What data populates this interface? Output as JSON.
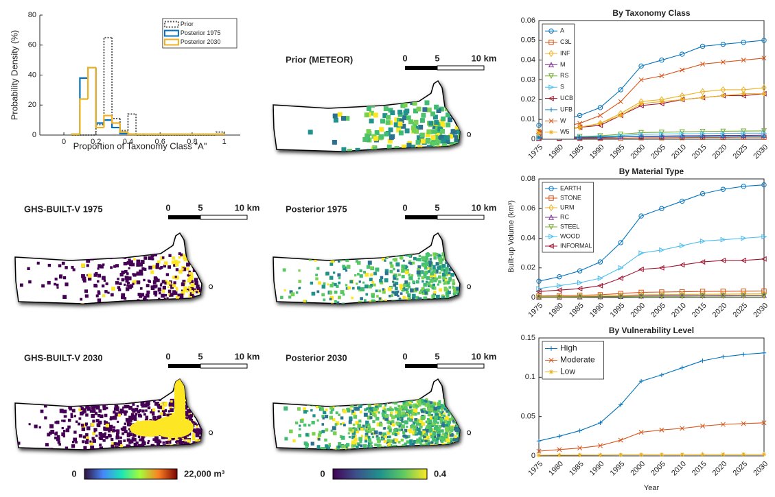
{
  "chart_data": [
    {
      "type": "histogram",
      "xlabel": "Proportion of Taxonomy Class \"A\"",
      "ylabel": "Probability Density (%)",
      "bins": [
        0.05,
        0.1,
        0.15,
        0.2,
        0.25,
        0.3,
        0.35,
        0.4,
        0.45,
        0.5,
        0.55,
        0.6,
        0.65,
        0.7,
        0.75,
        0.8,
        0.85,
        0.9,
        0.95,
        1.0
      ],
      "series": [
        {
          "name": "Prior",
          "color": "#555555",
          "dash": "dotted",
          "values": [
            0,
            0,
            0,
            7,
            65,
            11,
            3,
            14,
            0,
            0,
            0,
            0,
            0,
            0,
            0,
            0,
            0,
            0,
            2
          ]
        },
        {
          "name": "Posterior 1975",
          "color": "#0072BD",
          "dash": "solid",
          "values": [
            0.5,
            38,
            45,
            8,
            10,
            5,
            1,
            0.5,
            0.5,
            0.5,
            0.5,
            0.5,
            0.5,
            0.5,
            0.5,
            0.5,
            0.5,
            0.5,
            0.5
          ]
        },
        {
          "name": "Posterior 2030",
          "color": "#EDB120",
          "dash": "solid",
          "values": [
            0.5,
            24,
            45,
            5,
            13,
            8,
            2,
            0.5,
            0.5,
            0.5,
            0.5,
            0.5,
            0.5,
            0.5,
            0.5,
            0.5,
            0.5,
            0.5,
            0.5
          ]
        }
      ],
      "xlim": [
        -0.15,
        1.1
      ],
      "xticks": [
        0,
        0.2,
        0.4,
        0.6,
        0.8,
        1
      ],
      "ylim": [
        0,
        80
      ],
      "yticks": [
        0,
        20,
        40,
        60,
        80
      ],
      "legend": "upper right",
      "box": false
    },
    {
      "type": "line",
      "title": "By Taxonomy Class",
      "x": [
        1975,
        1980,
        1985,
        1990,
        1995,
        2000,
        2005,
        2010,
        2015,
        2020,
        2025,
        2030
      ],
      "series": [
        {
          "name": "A",
          "color": "#0072BD",
          "marker": "o",
          "values": [
            0.007,
            0.009,
            0.012,
            0.016,
            0.025,
            0.037,
            0.04,
            0.043,
            0.047,
            0.048,
            0.049,
            0.05
          ]
        },
        {
          "name": "C3L",
          "color": "#D95319",
          "marker": "s",
          "values": [
            0.0003,
            0.0003,
            0.0004,
            0.0004,
            0.0005,
            0.0007,
            0.0007,
            0.0008,
            0.0009,
            0.0009,
            0.001,
            0.001
          ]
        },
        {
          "name": "INF",
          "color": "#EDB120",
          "marker": "d",
          "values": [
            0.004,
            0.005,
            0.006,
            0.008,
            0.013,
            0.019,
            0.02,
            0.022,
            0.024,
            0.025,
            0.025,
            0.026
          ]
        },
        {
          "name": "M",
          "color": "#7E2F8E",
          "marker": "^",
          "values": [
            0.0005,
            0.0006,
            0.0007,
            0.0008,
            0.0011,
            0.0015,
            0.0016,
            0.0017,
            0.0018,
            0.0019,
            0.0019,
            0.002
          ]
        },
        {
          "name": "RS",
          "color": "#77AC30",
          "marker": "v",
          "values": [
            0.001,
            0.001,
            0.0013,
            0.0017,
            0.0025,
            0.0033,
            0.0035,
            0.0037,
            0.0039,
            0.004,
            0.0041,
            0.0042
          ]
        },
        {
          "name": "S",
          "color": "#4DBEEE",
          "marker": ">",
          "values": [
            0.0008,
            0.0009,
            0.0011,
            0.0013,
            0.0018,
            0.0024,
            0.0026,
            0.0027,
            0.0028,
            0.0029,
            0.003,
            0.003
          ]
        },
        {
          "name": "UCB",
          "color": "#A2142F",
          "marker": "<",
          "values": [
            0.003,
            0.004,
            0.006,
            0.007,
            0.012,
            0.017,
            0.018,
            0.02,
            0.021,
            0.022,
            0.022,
            0.023
          ]
        },
        {
          "name": "UFB",
          "color": "#0072BD",
          "marker": "+",
          "values": [
            0.001,
            0.001,
            0.001,
            0.0011,
            0.0012,
            0.0013,
            0.0013,
            0.0014,
            0.0014,
            0.0015,
            0.0015,
            0.0015
          ]
        },
        {
          "name": "W",
          "color": "#D95319",
          "marker": "x",
          "values": [
            0.004,
            0.006,
            0.008,
            0.012,
            0.019,
            0.03,
            0.032,
            0.035,
            0.038,
            0.039,
            0.04,
            0.041
          ]
        },
        {
          "name": "W5",
          "color": "#EDB120",
          "marker": "*",
          "values": [
            0.003,
            0.004,
            0.006,
            0.008,
            0.012,
            0.018,
            0.019,
            0.02,
            0.021,
            0.022,
            0.023,
            0.023
          ]
        }
      ],
      "xlim": [
        1975,
        2030
      ],
      "xticks": [
        1975,
        1980,
        1985,
        1990,
        1995,
        2000,
        2005,
        2010,
        2015,
        2020,
        2025,
        2030
      ],
      "ylim": [
        0,
        0.06
      ],
      "yticks": [
        0,
        0.01,
        0.02,
        0.03,
        0.04,
        0.05,
        0.06
      ],
      "legend": "upper left",
      "box": true
    },
    {
      "type": "line",
      "title": "By Material Type",
      "ylabel": "Built-up Volume (km³)",
      "x": [
        1975,
        1980,
        1985,
        1990,
        1995,
        2000,
        2005,
        2010,
        2015,
        2020,
        2025,
        2030
      ],
      "series": [
        {
          "name": "EARTH",
          "color": "#0072BD",
          "marker": "o",
          "values": [
            0.011,
            0.014,
            0.018,
            0.024,
            0.037,
            0.055,
            0.06,
            0.065,
            0.07,
            0.073,
            0.075,
            0.076
          ]
        },
        {
          "name": "STONE",
          "color": "#D95319",
          "marker": "s",
          "values": [
            0.001,
            0.0012,
            0.0015,
            0.0019,
            0.0027,
            0.0035,
            0.0037,
            0.0039,
            0.0041,
            0.0042,
            0.0043,
            0.0044
          ]
        },
        {
          "name": "URM",
          "color": "#EDB120",
          "marker": "d",
          "values": [
            0.0005,
            0.0006,
            0.0008,
            0.001,
            0.0014,
            0.0019,
            0.002,
            0.0021,
            0.0022,
            0.0023,
            0.0024,
            0.0025
          ]
        },
        {
          "name": "RC",
          "color": "#7E2F8E",
          "marker": "^",
          "values": [
            0.0003,
            0.0004,
            0.0005,
            0.0006,
            0.0008,
            0.0011,
            0.0012,
            0.0013,
            0.0013,
            0.0014,
            0.0014,
            0.0015
          ]
        },
        {
          "name": "STEEL",
          "color": "#77AC30",
          "marker": "v",
          "values": [
            0.0002,
            0.0002,
            0.0003,
            0.0004,
            0.0005,
            0.0007,
            0.0008,
            0.0008,
            0.0009,
            0.0009,
            0.001,
            0.001
          ]
        },
        {
          "name": "WOOD",
          "color": "#4DBEEE",
          "marker": ">",
          "values": [
            0.006,
            0.008,
            0.01,
            0.013,
            0.02,
            0.03,
            0.032,
            0.035,
            0.038,
            0.039,
            0.04,
            0.041
          ]
        },
        {
          "name": "INFORMAL",
          "color": "#A2142F",
          "marker": "<",
          "values": [
            0.004,
            0.005,
            0.006,
            0.008,
            0.013,
            0.019,
            0.02,
            0.022,
            0.024,
            0.025,
            0.025,
            0.026
          ]
        }
      ],
      "xlim": [
        1975,
        2030
      ],
      "xticks": [
        1975,
        1980,
        1985,
        1990,
        1995,
        2000,
        2005,
        2010,
        2015,
        2020,
        2025,
        2030
      ],
      "ylim": [
        0,
        0.08
      ],
      "yticks": [
        0,
        0.02,
        0.04,
        0.06,
        0.08
      ],
      "legend": "upper left",
      "box": true
    },
    {
      "type": "line",
      "title": "By Vulnerability Level",
      "xlabel": "Year",
      "x": [
        1975,
        1980,
        1985,
        1990,
        1995,
        2000,
        2005,
        2010,
        2015,
        2020,
        2025,
        2030
      ],
      "series": [
        {
          "name": "High",
          "color": "#0072BD",
          "marker": "+",
          "values": [
            0.019,
            0.025,
            0.032,
            0.042,
            0.065,
            0.095,
            0.103,
            0.112,
            0.121,
            0.126,
            0.129,
            0.131
          ]
        },
        {
          "name": "Moderate",
          "color": "#D95319",
          "marker": "x",
          "values": [
            0.006,
            0.008,
            0.01,
            0.013,
            0.02,
            0.03,
            0.033,
            0.035,
            0.038,
            0.04,
            0.041,
            0.042
          ]
        },
        {
          "name": "Low",
          "color": "#EDB120",
          "marker": "*",
          "values": [
            0.0008,
            0.0009,
            0.001,
            0.0011,
            0.0013,
            0.0016,
            0.0017,
            0.0018,
            0.0019,
            0.002,
            0.002,
            0.002
          ]
        }
      ],
      "xlim": [
        1975,
        2030
      ],
      "xticks": [
        1975,
        1980,
        1985,
        1990,
        1995,
        2000,
        2005,
        2010,
        2015,
        2020,
        2025,
        2030
      ],
      "ylim": [
        0,
        0.15
      ],
      "yticks": [
        0,
        0.05,
        0.1,
        0.15
      ],
      "legend": "upper left",
      "box": true
    }
  ],
  "maps": [
    {
      "title": "Prior (METEOR)",
      "scale": [
        "0",
        "5",
        "10 km"
      ]
    },
    {
      "title": "GHS-BUILT-V 1975",
      "scale": [
        "0",
        "5",
        "10 km"
      ]
    },
    {
      "title": "Posterior 1975",
      "scale": [
        "0",
        "5",
        "10 km"
      ]
    },
    {
      "title": "GHS-BUILT-V 2030",
      "scale": [
        "0",
        "5",
        "10 km"
      ]
    },
    {
      "title": "Posterior 2030",
      "scale": [
        "0",
        "5",
        "10 km"
      ]
    }
  ],
  "colorbars": [
    {
      "labels": [
        "0",
        "22,000 m³"
      ]
    },
    {
      "labels": [
        "0",
        "0.4"
      ]
    }
  ]
}
